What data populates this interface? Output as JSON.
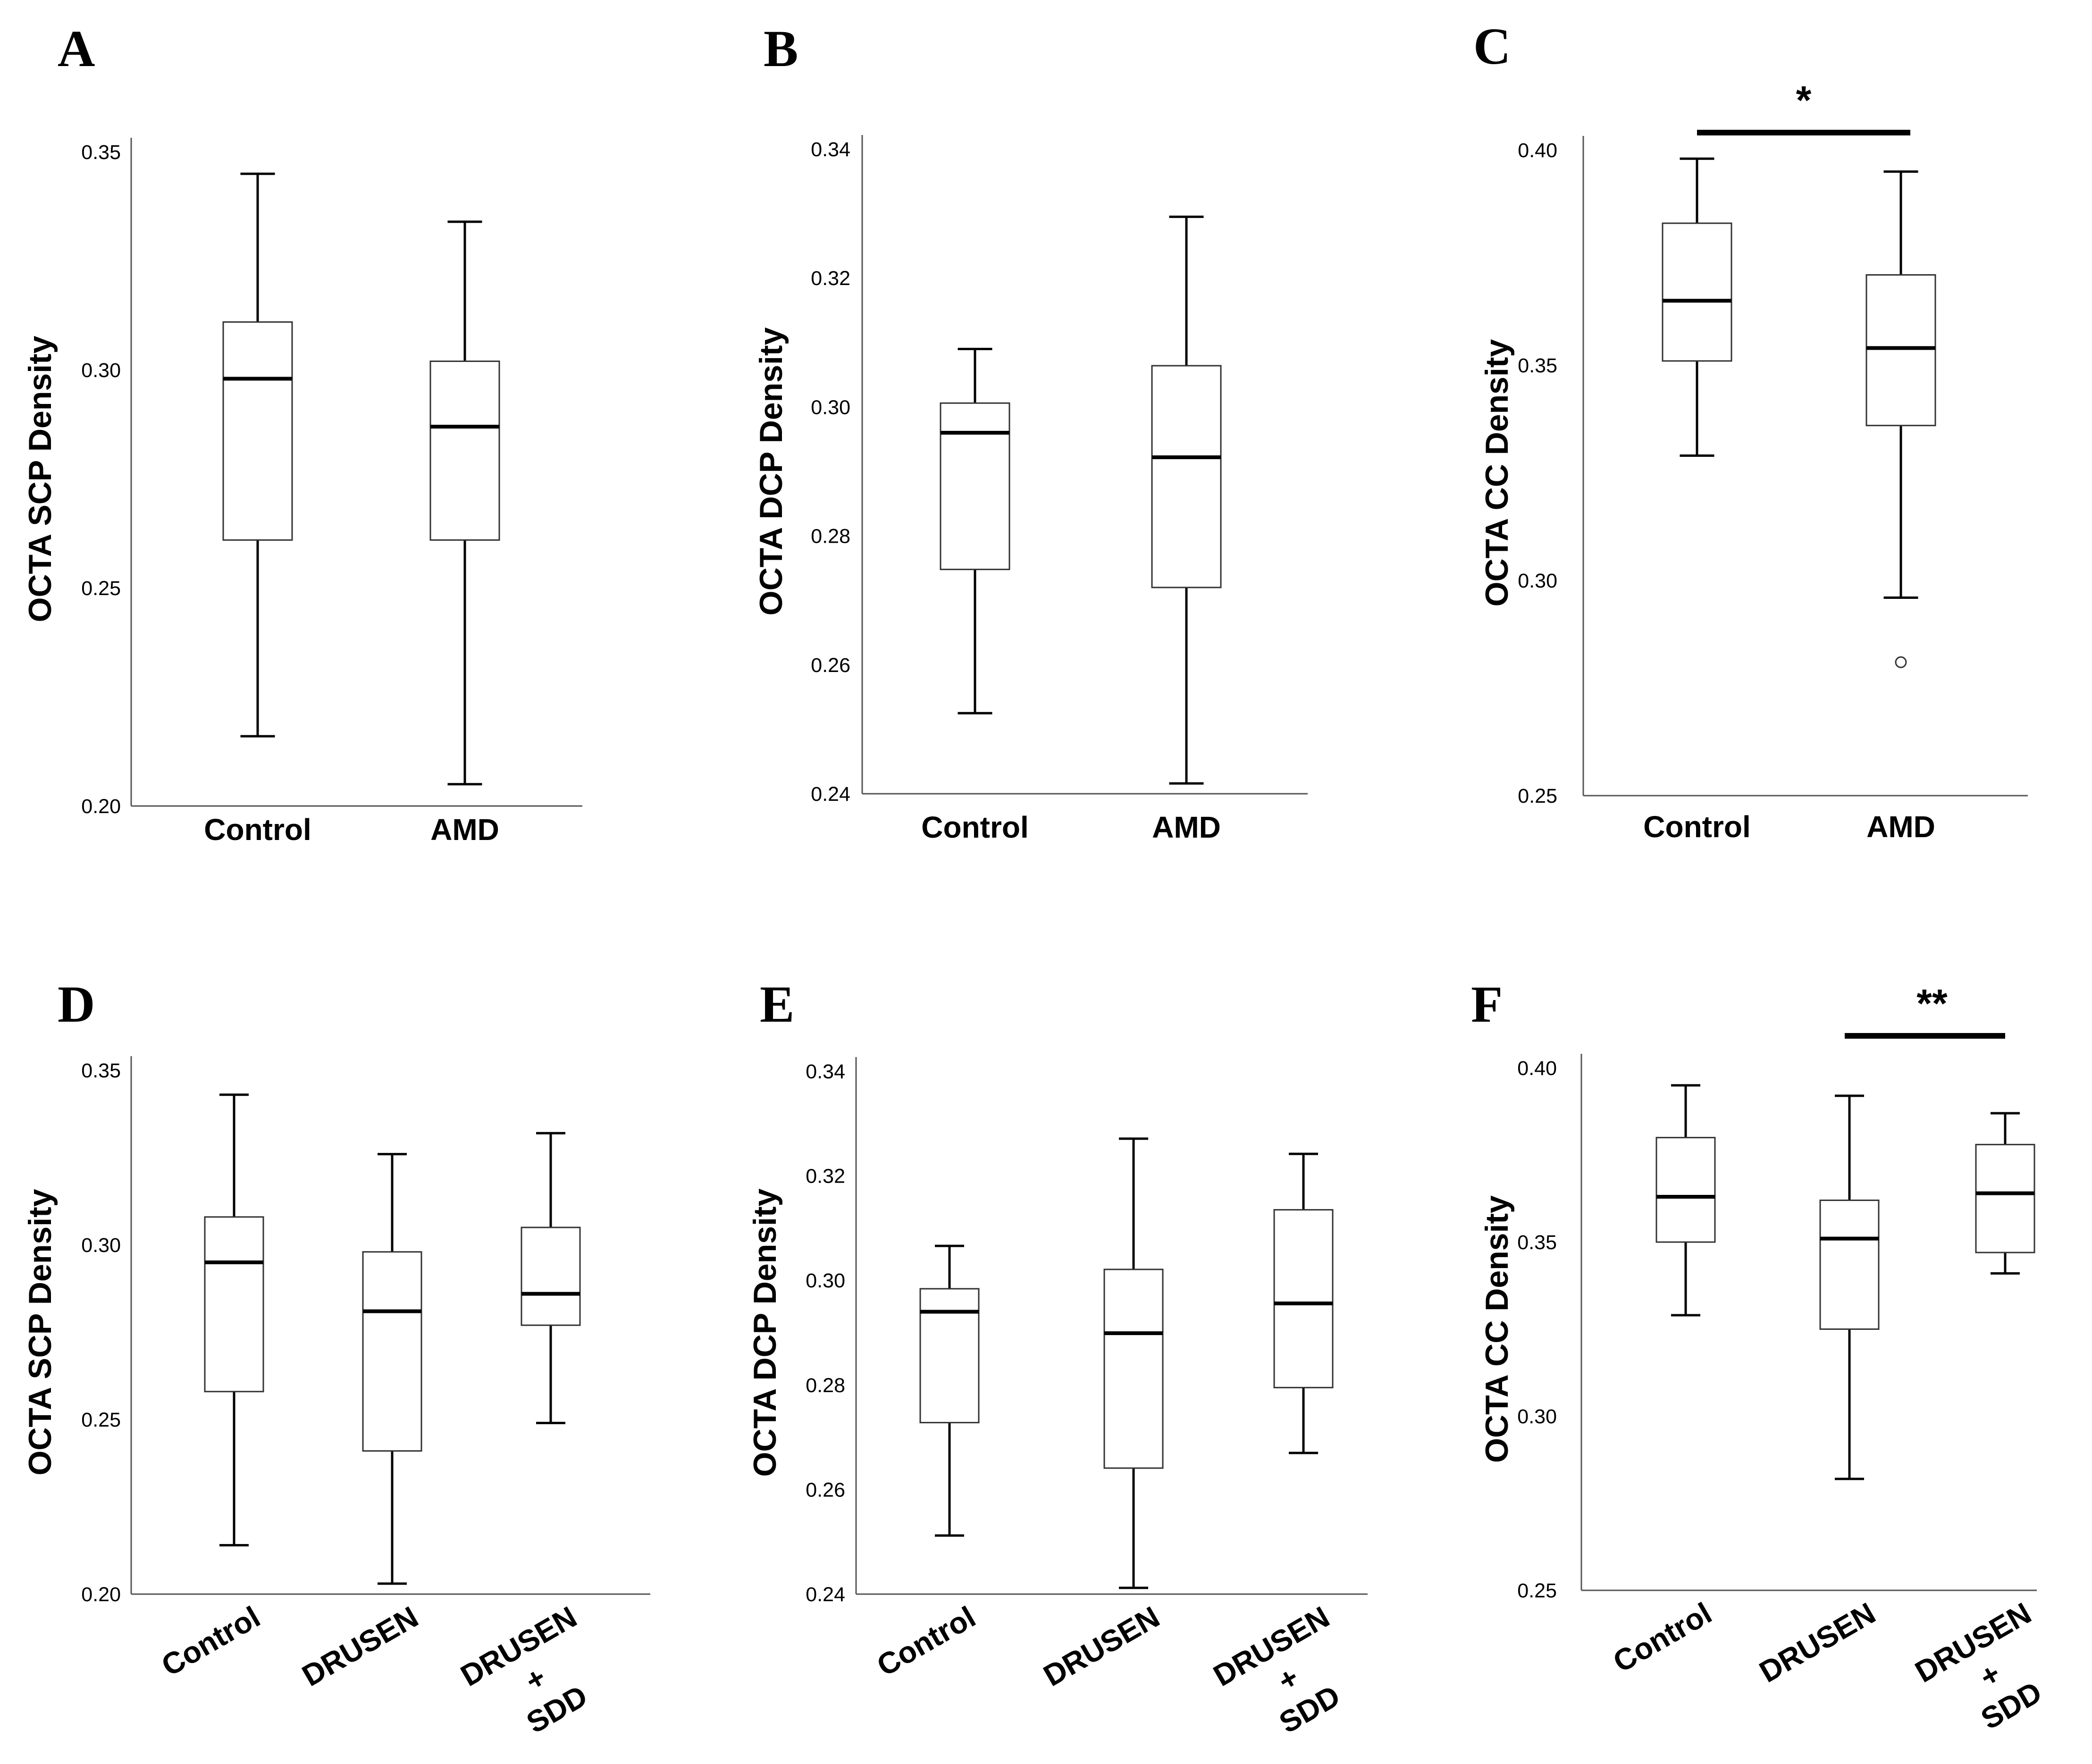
{
  "chart_data": [
    {
      "panel": "A",
      "type": "box",
      "ylabel": "OCTA SCP Density",
      "ylim": [
        0.2,
        0.35
      ],
      "yticks": [
        "0.20",
        "0.25",
        "0.30",
        "0.35"
      ],
      "categories": [
        "Control",
        "AMD"
      ],
      "boxes": [
        {
          "whisker_low": 0.216,
          "q1": 0.261,
          "median": 0.298,
          "q3": 0.311,
          "whisker_high": 0.345
        },
        {
          "whisker_low": 0.205,
          "q1": 0.261,
          "median": 0.287,
          "q3": 0.302,
          "whisker_high": 0.334
        }
      ],
      "outliers": [],
      "significance": []
    },
    {
      "panel": "B",
      "type": "box",
      "ylabel": "OCTA DCP Density",
      "ylim": [
        0.24,
        0.34
      ],
      "yticks": [
        "0.24",
        "0.26",
        "0.28",
        "0.30",
        "0.32",
        "0.34"
      ],
      "categories": [
        "Control",
        "AMD"
      ],
      "boxes": [
        {
          "whisker_low": 0.2525,
          "q1": 0.2748,
          "median": 0.296,
          "q3": 0.3006,
          "whisker_high": 0.309
        },
        {
          "whisker_low": 0.2416,
          "q1": 0.272,
          "median": 0.2922,
          "q3": 0.3064,
          "whisker_high": 0.3295
        }
      ],
      "outliers": [],
      "significance": []
    },
    {
      "panel": "C",
      "type": "box",
      "ylabel": "OCTA CC Density",
      "ylim": [
        0.25,
        0.4
      ],
      "yticks": [
        "0.25",
        "0.30",
        "0.35",
        "0.40"
      ],
      "categories": [
        "Control",
        "AMD"
      ],
      "boxes": [
        {
          "whisker_low": 0.329,
          "q1": 0.351,
          "median": 0.365,
          "q3": 0.383,
          "whisker_high": 0.398
        },
        {
          "whisker_low": 0.296,
          "q1": 0.336,
          "median": 0.354,
          "q3": 0.371,
          "whisker_high": 0.395
        }
      ],
      "outliers": [
        {
          "cat": 1,
          "value": 0.281
        }
      ],
      "significance": [
        {
          "from": 0,
          "to": 1,
          "label": "*"
        }
      ]
    },
    {
      "panel": "D",
      "type": "box",
      "ylabel": "OCTA SCP Density",
      "ylim": [
        0.2,
        0.35
      ],
      "yticks": [
        "0.20",
        "0.25",
        "0.30",
        "0.35"
      ],
      "categories": [
        "Control",
        "DRUSEN",
        "DRUSEN + SDD"
      ],
      "category_lines": [
        [
          "Control"
        ],
        [
          "DRUSEN"
        ],
        [
          "DRUSEN",
          "+",
          "SDD"
        ]
      ],
      "boxes": [
        {
          "whisker_low": 0.214,
          "q1": 0.258,
          "median": 0.295,
          "q3": 0.308,
          "whisker_high": 0.343
        },
        {
          "whisker_low": 0.203,
          "q1": 0.241,
          "median": 0.281,
          "q3": 0.298,
          "whisker_high": 0.326
        },
        {
          "whisker_low": 0.249,
          "q1": 0.277,
          "median": 0.286,
          "q3": 0.305,
          "whisker_high": 0.332
        }
      ],
      "outliers": [],
      "significance": []
    },
    {
      "panel": "E",
      "type": "box",
      "ylabel": "OCTA DCP Density",
      "ylim": [
        0.24,
        0.34
      ],
      "yticks": [
        "0.24",
        "0.26",
        "0.28",
        "0.30",
        "0.32",
        "0.34"
      ],
      "categories": [
        "Control",
        "DRUSEN",
        "DRUSEN + SDD"
      ],
      "category_lines": [
        [
          "Control"
        ],
        [
          "DRUSEN"
        ],
        [
          "DRUSEN",
          "+",
          "SDD"
        ]
      ],
      "boxes": [
        {
          "whisker_low": 0.2512,
          "q1": 0.2728,
          "median": 0.294,
          "q3": 0.2984,
          "whisker_high": 0.3066
        },
        {
          "whisker_low": 0.2412,
          "q1": 0.2641,
          "median": 0.2899,
          "q3": 0.3021,
          "whisker_high": 0.3271
        },
        {
          "whisker_low": 0.267,
          "q1": 0.2795,
          "median": 0.2956,
          "q3": 0.3135,
          "whisker_high": 0.3242
        }
      ],
      "outliers": [],
      "significance": []
    },
    {
      "panel": "F",
      "type": "box",
      "ylabel": "OCTA CC Density",
      "ylim": [
        0.25,
        0.4
      ],
      "yticks": [
        "0.25",
        "0.30",
        "0.35",
        "0.40"
      ],
      "categories": [
        "Control",
        "DRUSEN",
        "DRUSEN + SDD"
      ],
      "category_lines": [
        [
          "Control"
        ],
        [
          "DRUSEN"
        ],
        [
          "DRUSEN",
          "+",
          "SDD"
        ]
      ],
      "boxes": [
        {
          "whisker_low": 0.329,
          "q1": 0.35,
          "median": 0.363,
          "q3": 0.38,
          "whisker_high": 0.395
        },
        {
          "whisker_low": 0.282,
          "q1": 0.325,
          "median": 0.351,
          "q3": 0.362,
          "whisker_high": 0.392
        },
        {
          "whisker_low": 0.341,
          "q1": 0.347,
          "median": 0.364,
          "q3": 0.378,
          "whisker_high": 0.387
        }
      ],
      "outliers": [],
      "significance": [
        {
          "from": 1,
          "to": 2,
          "label": "**"
        }
      ]
    }
  ]
}
